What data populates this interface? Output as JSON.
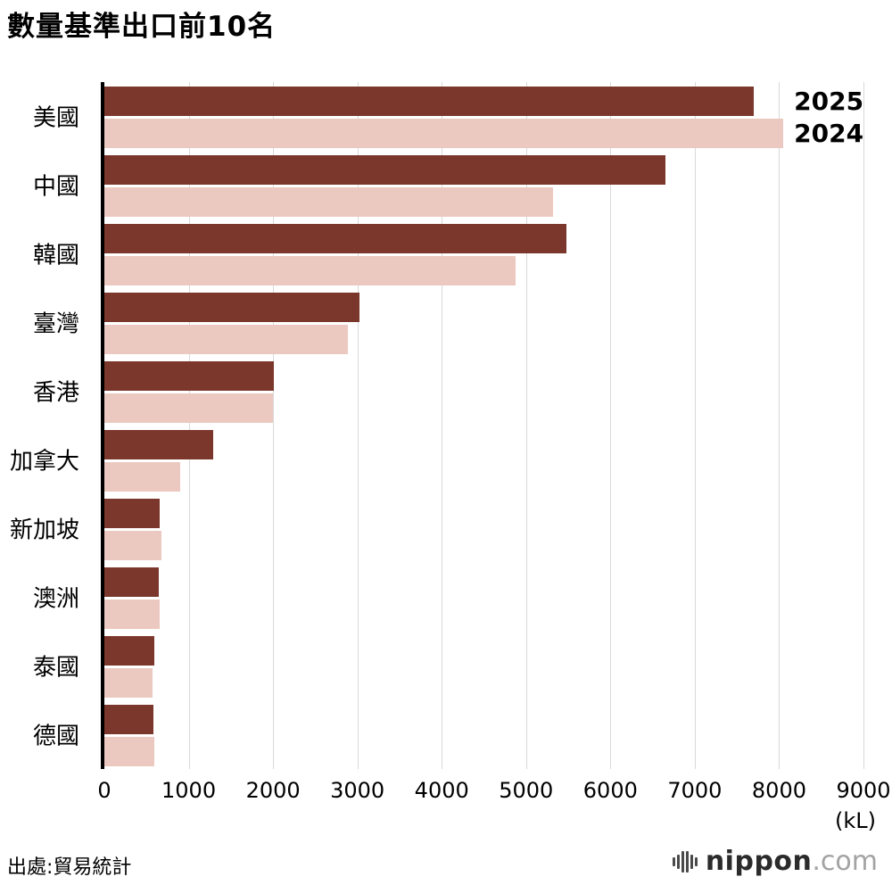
{
  "title": "數量基準出口前10名",
  "source": "出處:貿易統計",
  "unit_label": "(kL)",
  "colors": {
    "series_2025": "#7b372b",
    "series_2024": "#ecc9c0",
    "grid": "#d9d9d9",
    "axis": "#000000"
  },
  "chart_data": {
    "type": "bar",
    "orientation": "horizontal",
    "title": "數量基準出口前10名",
    "xlabel": "(kL)",
    "xlim": [
      0,
      9000
    ],
    "xticks": [
      0,
      1000,
      2000,
      3000,
      4000,
      5000,
      6000,
      7000,
      8000,
      9000
    ],
    "grid": true,
    "legend_position": "right-of-first-bars",
    "categories": [
      "美國",
      "中國",
      "韓國",
      "臺灣",
      "香港",
      "加拿大",
      "新加坡",
      "澳洲",
      "泰國",
      "德國"
    ],
    "series": [
      {
        "name": "2025",
        "color": "#7b372b",
        "values": [
          7700,
          6650,
          5480,
          3020,
          2010,
          1290,
          660,
          640,
          590,
          580
        ]
      },
      {
        "name": "2024",
        "color": "#ecc9c0",
        "values": [
          8050,
          5320,
          4880,
          2890,
          2000,
          900,
          680,
          660,
          570,
          590
        ]
      }
    ]
  },
  "branding": {
    "name": "nippon",
    "tld": ".com"
  }
}
